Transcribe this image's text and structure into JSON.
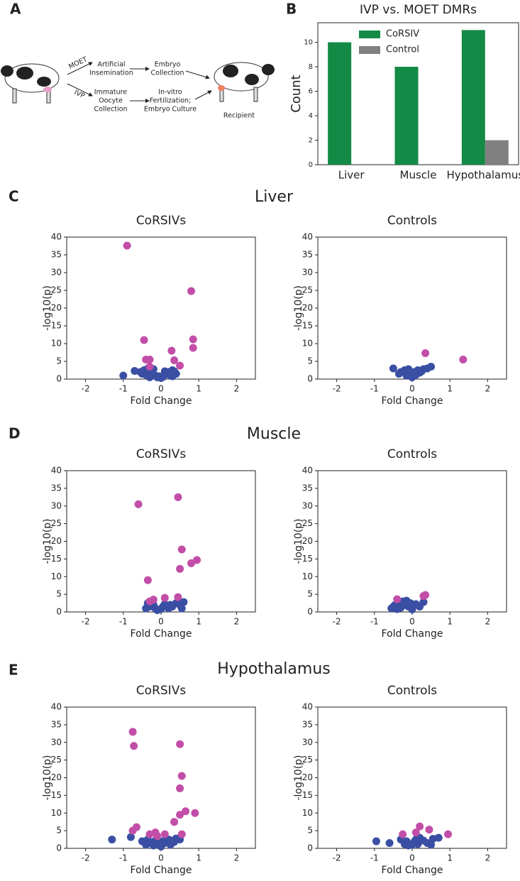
{
  "panel_labels": [
    "A",
    "B",
    "C",
    "D",
    "E"
  ],
  "sections": [
    "Liver",
    "Muscle",
    "Hypothalamus"
  ],
  "diagram": {
    "moet": "MOET",
    "ivp": "IVP",
    "artificial_insemination": [
      "Artificial",
      "Insemination"
    ],
    "embryo_collection": [
      "Embryo",
      "Collection"
    ],
    "oocyte_collection": [
      "Immature",
      "Oocyte",
      "Collection"
    ],
    "ivf": [
      "In-vitro",
      "Fertilization;",
      "Embryo Culture"
    ],
    "recipient": "Recipient"
  },
  "chart_data": [
    {
      "type": "bar",
      "title": "IVP vs. MOET DMRs",
      "ylabel": "Count",
      "categories": [
        "Liver",
        "Muscle",
        "Hypothalamus"
      ],
      "series": [
        {
          "name": "CoRSIV",
          "color": "#138a45",
          "values": [
            10,
            8,
            11
          ]
        },
        {
          "name": "Control",
          "color": "#808080",
          "values": [
            0,
            0,
            2
          ]
        }
      ],
      "ylim": [
        0,
        11.6
      ],
      "yticks": [
        0,
        2,
        4,
        6,
        8,
        10
      ],
      "legend": "upper left"
    },
    {
      "type": "scatter",
      "title": "CoRSIVs",
      "xlabel": "Fold Change",
      "ylabel": "-log10(p)",
      "xlim": [
        -2.5,
        2.5
      ],
      "ylim": [
        0,
        40
      ],
      "xticks": [
        -2,
        -1,
        0,
        1,
        2
      ],
      "yticks": [
        0,
        5,
        10,
        15,
        20,
        25,
        30,
        35,
        40
      ],
      "series": [
        {
          "color": "#3a4fa3",
          "x": [
            -1.0,
            -0.7,
            -0.55,
            -0.5,
            -0.45,
            -0.4,
            -0.35,
            -0.3,
            -0.25,
            -0.2,
            -0.15,
            -0.1,
            -0.05,
            0,
            0.05,
            0.1,
            0.15,
            0.2,
            0.25,
            0.3,
            0.35,
            0.4,
            -0.3,
            -0.2,
            0.1,
            0.3
          ],
          "values": [
            1.0,
            2.3,
            2.0,
            1.5,
            2.5,
            1.2,
            3.0,
            2.0,
            1.5,
            2.8,
            1.0,
            0.5,
            0.8,
            0.3,
            0.6,
            1.2,
            1.5,
            2.0,
            1.0,
            2.5,
            2.2,
            1.5,
            0.5,
            1.0,
            2.2,
            0.8
          ]
        },
        {
          "color": "#c24ea8",
          "x": [
            -0.9,
            0.8,
            -0.45,
            0.85,
            0.85,
            0.28,
            -0.4,
            -0.3,
            0.35,
            0.5,
            -0.3
          ],
          "values": [
            37.6,
            24.8,
            11,
            11.2,
            8.8,
            8,
            5.5,
            5.5,
            5.3,
            3.8,
            3.5
          ]
        }
      ]
    },
    {
      "type": "scatter",
      "title": "Controls",
      "xlabel": "Fold Change",
      "ylabel": "-log10(p)",
      "xlim": [
        -2.5,
        2.5
      ],
      "ylim": [
        0,
        40
      ],
      "xticks": [
        -2,
        -1,
        0,
        1,
        2
      ],
      "yticks": [
        0,
        5,
        10,
        15,
        20,
        25,
        30,
        35,
        40
      ],
      "series": [
        {
          "color": "#3a4fa3",
          "x": [
            -0.5,
            -0.35,
            -0.3,
            -0.2,
            -0.15,
            -0.1,
            -0.05,
            0,
            0.05,
            0.1,
            0.15,
            0.2,
            0.25,
            0.3,
            0.4,
            0.5
          ],
          "values": [
            3.0,
            1.5,
            2.0,
            2.5,
            1.0,
            2.8,
            1.5,
            0.5,
            2.0,
            1.2,
            2.5,
            1.8,
            2.2,
            2.8,
            3.0,
            3.5
          ]
        },
        {
          "color": "#c24ea8",
          "x": [
            0.35,
            1.35
          ],
          "values": [
            7.3,
            5.5
          ]
        }
      ]
    },
    {
      "type": "scatter",
      "title": "CoRSIVs",
      "xlabel": "Fold Change",
      "ylabel": "-log10(p)",
      "xlim": [
        -2.5,
        2.5
      ],
      "ylim": [
        0,
        40
      ],
      "xticks": [
        -2,
        -1,
        0,
        1,
        2
      ],
      "yticks": [
        0,
        5,
        10,
        15,
        20,
        25,
        30,
        35,
        40
      ],
      "series": [
        {
          "color": "#3a4fa3",
          "x": [
            -0.4,
            -0.35,
            -0.3,
            -0.25,
            -0.2,
            -0.15,
            -0.1,
            0,
            0.05,
            0.1,
            0.2,
            0.25,
            0.3,
            0.4,
            0.45,
            0.5,
            0.55,
            0.6
          ],
          "values": [
            1.0,
            2.5,
            1.5,
            3.0,
            2.0,
            1.0,
            0.5,
            0.8,
            1.5,
            2.2,
            1.0,
            2.0,
            1.5,
            2.5,
            3.0,
            2.0,
            1.0,
            2.8
          ]
        },
        {
          "color": "#c24ea8",
          "x": [
            -0.6,
            0.45,
            0.55,
            0.95,
            0.8,
            0.5,
            -0.35,
            0.1,
            0.45,
            -0.2,
            -0.3
          ],
          "values": [
            30.5,
            32.5,
            17.7,
            14.7,
            13.8,
            12.2,
            9,
            4,
            4.2,
            3.5,
            3
          ]
        }
      ]
    },
    {
      "type": "scatter",
      "title": "Controls",
      "xlabel": "Fold Change",
      "ylabel": "-log10(p)",
      "xlim": [
        -2.5,
        2.5
      ],
      "ylim": [
        0,
        40
      ],
      "xticks": [
        -2,
        -1,
        0,
        1,
        2
      ],
      "yticks": [
        0,
        5,
        10,
        15,
        20,
        25,
        30,
        35,
        40
      ],
      "series": [
        {
          "color": "#3a4fa3",
          "x": [
            -0.55,
            -0.5,
            -0.45,
            -0.4,
            -0.35,
            -0.3,
            -0.25,
            -0.2,
            -0.15,
            -0.1,
            -0.05,
            0,
            0.05,
            0.1,
            0.2,
            0.3
          ],
          "values": [
            1.0,
            1.5,
            2.0,
            0.8,
            2.5,
            1.2,
            3.0,
            2.0,
            3.2,
            1.5,
            2.5,
            0.7,
            1.8,
            2.2,
            1.5,
            2.8
          ]
        },
        {
          "color": "#c24ea8",
          "x": [
            -0.4,
            0.3,
            0.35
          ],
          "values": [
            3.6,
            4.5,
            4.8
          ]
        }
      ]
    },
    {
      "type": "scatter",
      "title": "CoRSIVs",
      "xlabel": "Fold Change",
      "ylabel": "-log10(p)",
      "xlim": [
        -2.5,
        2.5
      ],
      "ylim": [
        0,
        40
      ],
      "xticks": [
        -2,
        -1,
        0,
        1,
        2
      ],
      "yticks": [
        0,
        5,
        10,
        15,
        20,
        25,
        30,
        35,
        40
      ],
      "series": [
        {
          "color": "#3a4fa3",
          "x": [
            -1.3,
            -0.8,
            -0.5,
            -0.4,
            -0.35,
            -0.3,
            -0.2,
            -0.15,
            -0.1,
            0,
            0.05,
            0.1,
            0.2,
            0.25,
            0.3,
            0.35,
            0.4,
            0.5
          ],
          "values": [
            2.5,
            3.2,
            2.0,
            1.0,
            2.5,
            1.5,
            0.8,
            2.2,
            1.2,
            0.5,
            2.0,
            1.5,
            2.5,
            1.0,
            2.2,
            1.8,
            2.8,
            2.5
          ]
        },
        {
          "color": "#c24ea8",
          "x": [
            -0.75,
            -0.72,
            0.5,
            0.55,
            0.5,
            0.65,
            0.9,
            0.5,
            0.35,
            -0.65,
            -0.75,
            0.55,
            -0.3,
            -0.15,
            0.1,
            -0.1
          ],
          "values": [
            33,
            29,
            29.5,
            20.5,
            17,
            10.5,
            10,
            9.5,
            7.5,
            6,
            5,
            4,
            4,
            4.5,
            4,
            3.5
          ]
        }
      ]
    },
    {
      "type": "scatter",
      "title": "Controls",
      "xlabel": "Fold Change",
      "ylabel": "-log10(p)",
      "xlim": [
        -2.5,
        2.5
      ],
      "ylim": [
        0,
        40
      ],
      "xticks": [
        -2,
        -1,
        0,
        1,
        2
      ],
      "yticks": [
        0,
        5,
        10,
        15,
        20,
        25,
        30,
        35,
        40
      ],
      "series": [
        {
          "color": "#3a4fa3",
          "x": [
            -0.95,
            -0.6,
            -0.3,
            -0.2,
            -0.15,
            -0.1,
            0,
            0.05,
            0.1,
            0.15,
            0.2,
            0.3,
            0.4,
            0.5,
            0.55,
            0.7
          ],
          "values": [
            2,
            1.5,
            2.5,
            1.2,
            2.0,
            0.8,
            1.0,
            1.8,
            2.5,
            1.2,
            3.0,
            2.2,
            1.5,
            1.0,
            2.7,
            3.0
          ]
        },
        {
          "color": "#c24ea8",
          "x": [
            -0.25,
            0.1,
            0.2,
            0.45,
            0.95
          ],
          "values": [
            4,
            4.5,
            6.2,
            5.3,
            4
          ]
        }
      ]
    }
  ]
}
